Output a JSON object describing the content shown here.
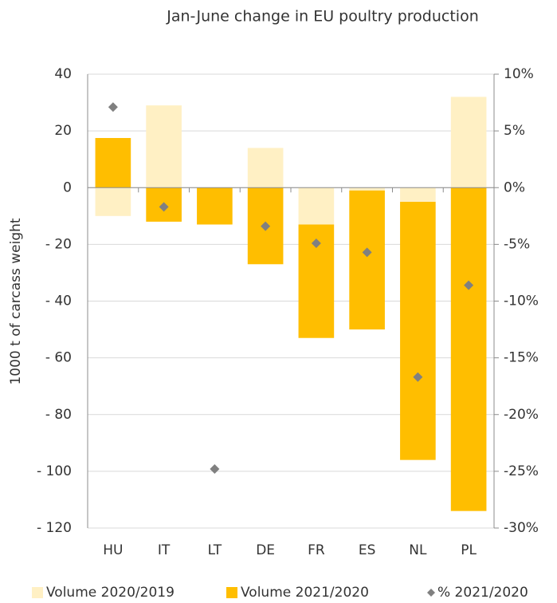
{
  "chart_data": {
    "type": "bar",
    "title": "Jan-June change in EU poultry production",
    "y_label": "1000 t of carcass weight",
    "categories": [
      "HU",
      "IT",
      "LT",
      "DE",
      "FR",
      "ES",
      "NL",
      "PL"
    ],
    "stacked": true,
    "series": [
      {
        "name": "Volume 2020/2019",
        "color": "#fff0c4",
        "values": [
          -10,
          29,
          0,
          14,
          -13,
          -1,
          -5,
          32
        ]
      },
      {
        "name": "Volume 2021/2020",
        "color": "#ffbe00",
        "values": [
          17.5,
          -12,
          -13,
          -27,
          -40,
          -49,
          -91,
          -114
        ]
      },
      {
        "name": "% 2021/2020",
        "color": "#808080",
        "type": "scatter",
        "marker": "diamond",
        "axis": "y2",
        "values": [
          7.1,
          -1.7,
          -24.8,
          -3.4,
          -4.9,
          -5.7,
          -16.7,
          -8.6
        ]
      }
    ],
    "ylim": [
      -120,
      40
    ],
    "yticks": [
      {
        "value": -120,
        "label": "- 120"
      },
      {
        "value": -100,
        "label": "- 100"
      },
      {
        "value": -80,
        "label": "- 80"
      },
      {
        "value": -60,
        "label": "- 60"
      },
      {
        "value": -40,
        "label": "- 40"
      },
      {
        "value": -20,
        "label": "- 20"
      },
      0,
      20,
      40
    ],
    "y2lim": [
      -30,
      10
    ],
    "y2ticks": [
      {
        "value": -30,
        "label": "-30%"
      },
      {
        "value": -25,
        "label": "-25%"
      },
      {
        "value": -20,
        "label": "-20%"
      },
      {
        "value": -15,
        "label": "-15%"
      },
      {
        "value": -10,
        "label": "-10%"
      },
      {
        "value": -5,
        "label": "-5%"
      },
      {
        "value": 0,
        "label": "0%"
      },
      {
        "value": 5,
        "label": "5%"
      },
      {
        "value": 10,
        "label": "10%"
      }
    ],
    "grid": true,
    "legend": "bottom"
  }
}
